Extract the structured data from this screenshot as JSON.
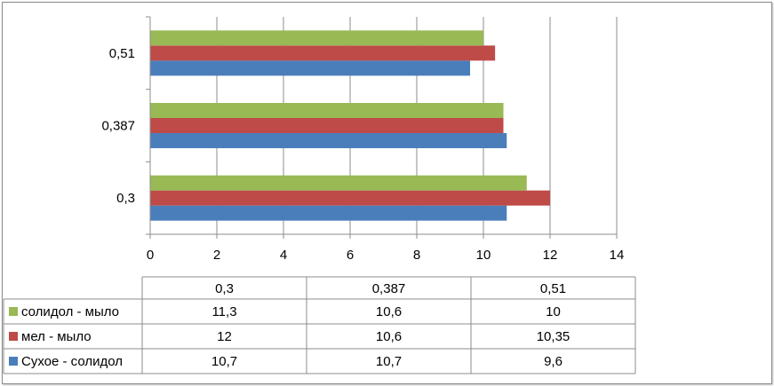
{
  "chart_data": {
    "type": "bar",
    "orientation": "horizontal",
    "categories": [
      "0,3",
      "0,387",
      "0,51"
    ],
    "series": [
      {
        "name": "Сухое - солидол",
        "color": "#4a7ebb",
        "values": [
          10.7,
          10.7,
          9.6
        ]
      },
      {
        "name": "мел - мыло",
        "color": "#be4b48",
        "values": [
          12,
          10.6,
          10.35
        ]
      },
      {
        "name": "солидол - мыло",
        "color": "#98b954",
        "values": [
          11.3,
          10.6,
          10
        ]
      }
    ],
    "table_rows": [
      {
        "name": "солидол - мыло",
        "color": "#98b954",
        "cells": [
          "11,3",
          "10,6",
          "10"
        ]
      },
      {
        "name": "мел - мыло",
        "color": "#be4b48",
        "cells": [
          "12",
          "10,6",
          "10,35"
        ]
      },
      {
        "name": "Сухое - солидол",
        "color": "#4a7ebb",
        "cells": [
          "10,7",
          "10,7",
          "9,6"
        ]
      }
    ],
    "xlim": [
      0,
      14
    ],
    "x_ticks": [
      "0",
      "2",
      "4",
      "6",
      "8",
      "10",
      "12",
      "14"
    ],
    "grid": true,
    "legend": "data-table",
    "title": "",
    "xlabel": "",
    "ylabel": ""
  }
}
